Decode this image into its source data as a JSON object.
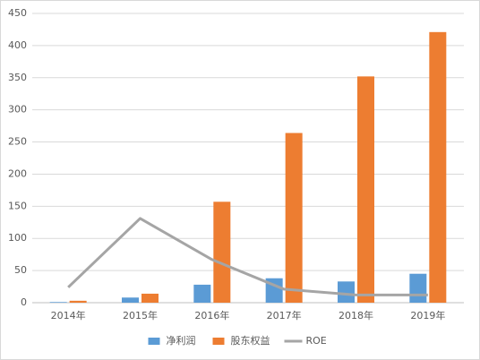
{
  "chart_data": {
    "type": "bar",
    "categories": [
      "2014年",
      "2015年",
      "2016年",
      "2017年",
      "2018年",
      "2019年"
    ],
    "series": [
      {
        "name": "净利润",
        "color": "#5b9bd5",
        "values": [
          1,
          8,
          28,
          38,
          33,
          45
        ]
      },
      {
        "name": "股东权益",
        "color": "#ed7d31",
        "values": [
          3,
          14,
          157,
          264,
          352,
          421
        ]
      },
      {
        "name": "ROE",
        "color": "#a5a5a5",
        "type": "line",
        "values": [
          24,
          131,
          67,
          21,
          12,
          12
        ]
      }
    ],
    "ylim": [
      0,
      450
    ],
    "yticks": [
      0,
      50,
      100,
      150,
      200,
      250,
      300,
      350,
      400,
      450
    ],
    "grid": true,
    "legend": "bottom"
  }
}
